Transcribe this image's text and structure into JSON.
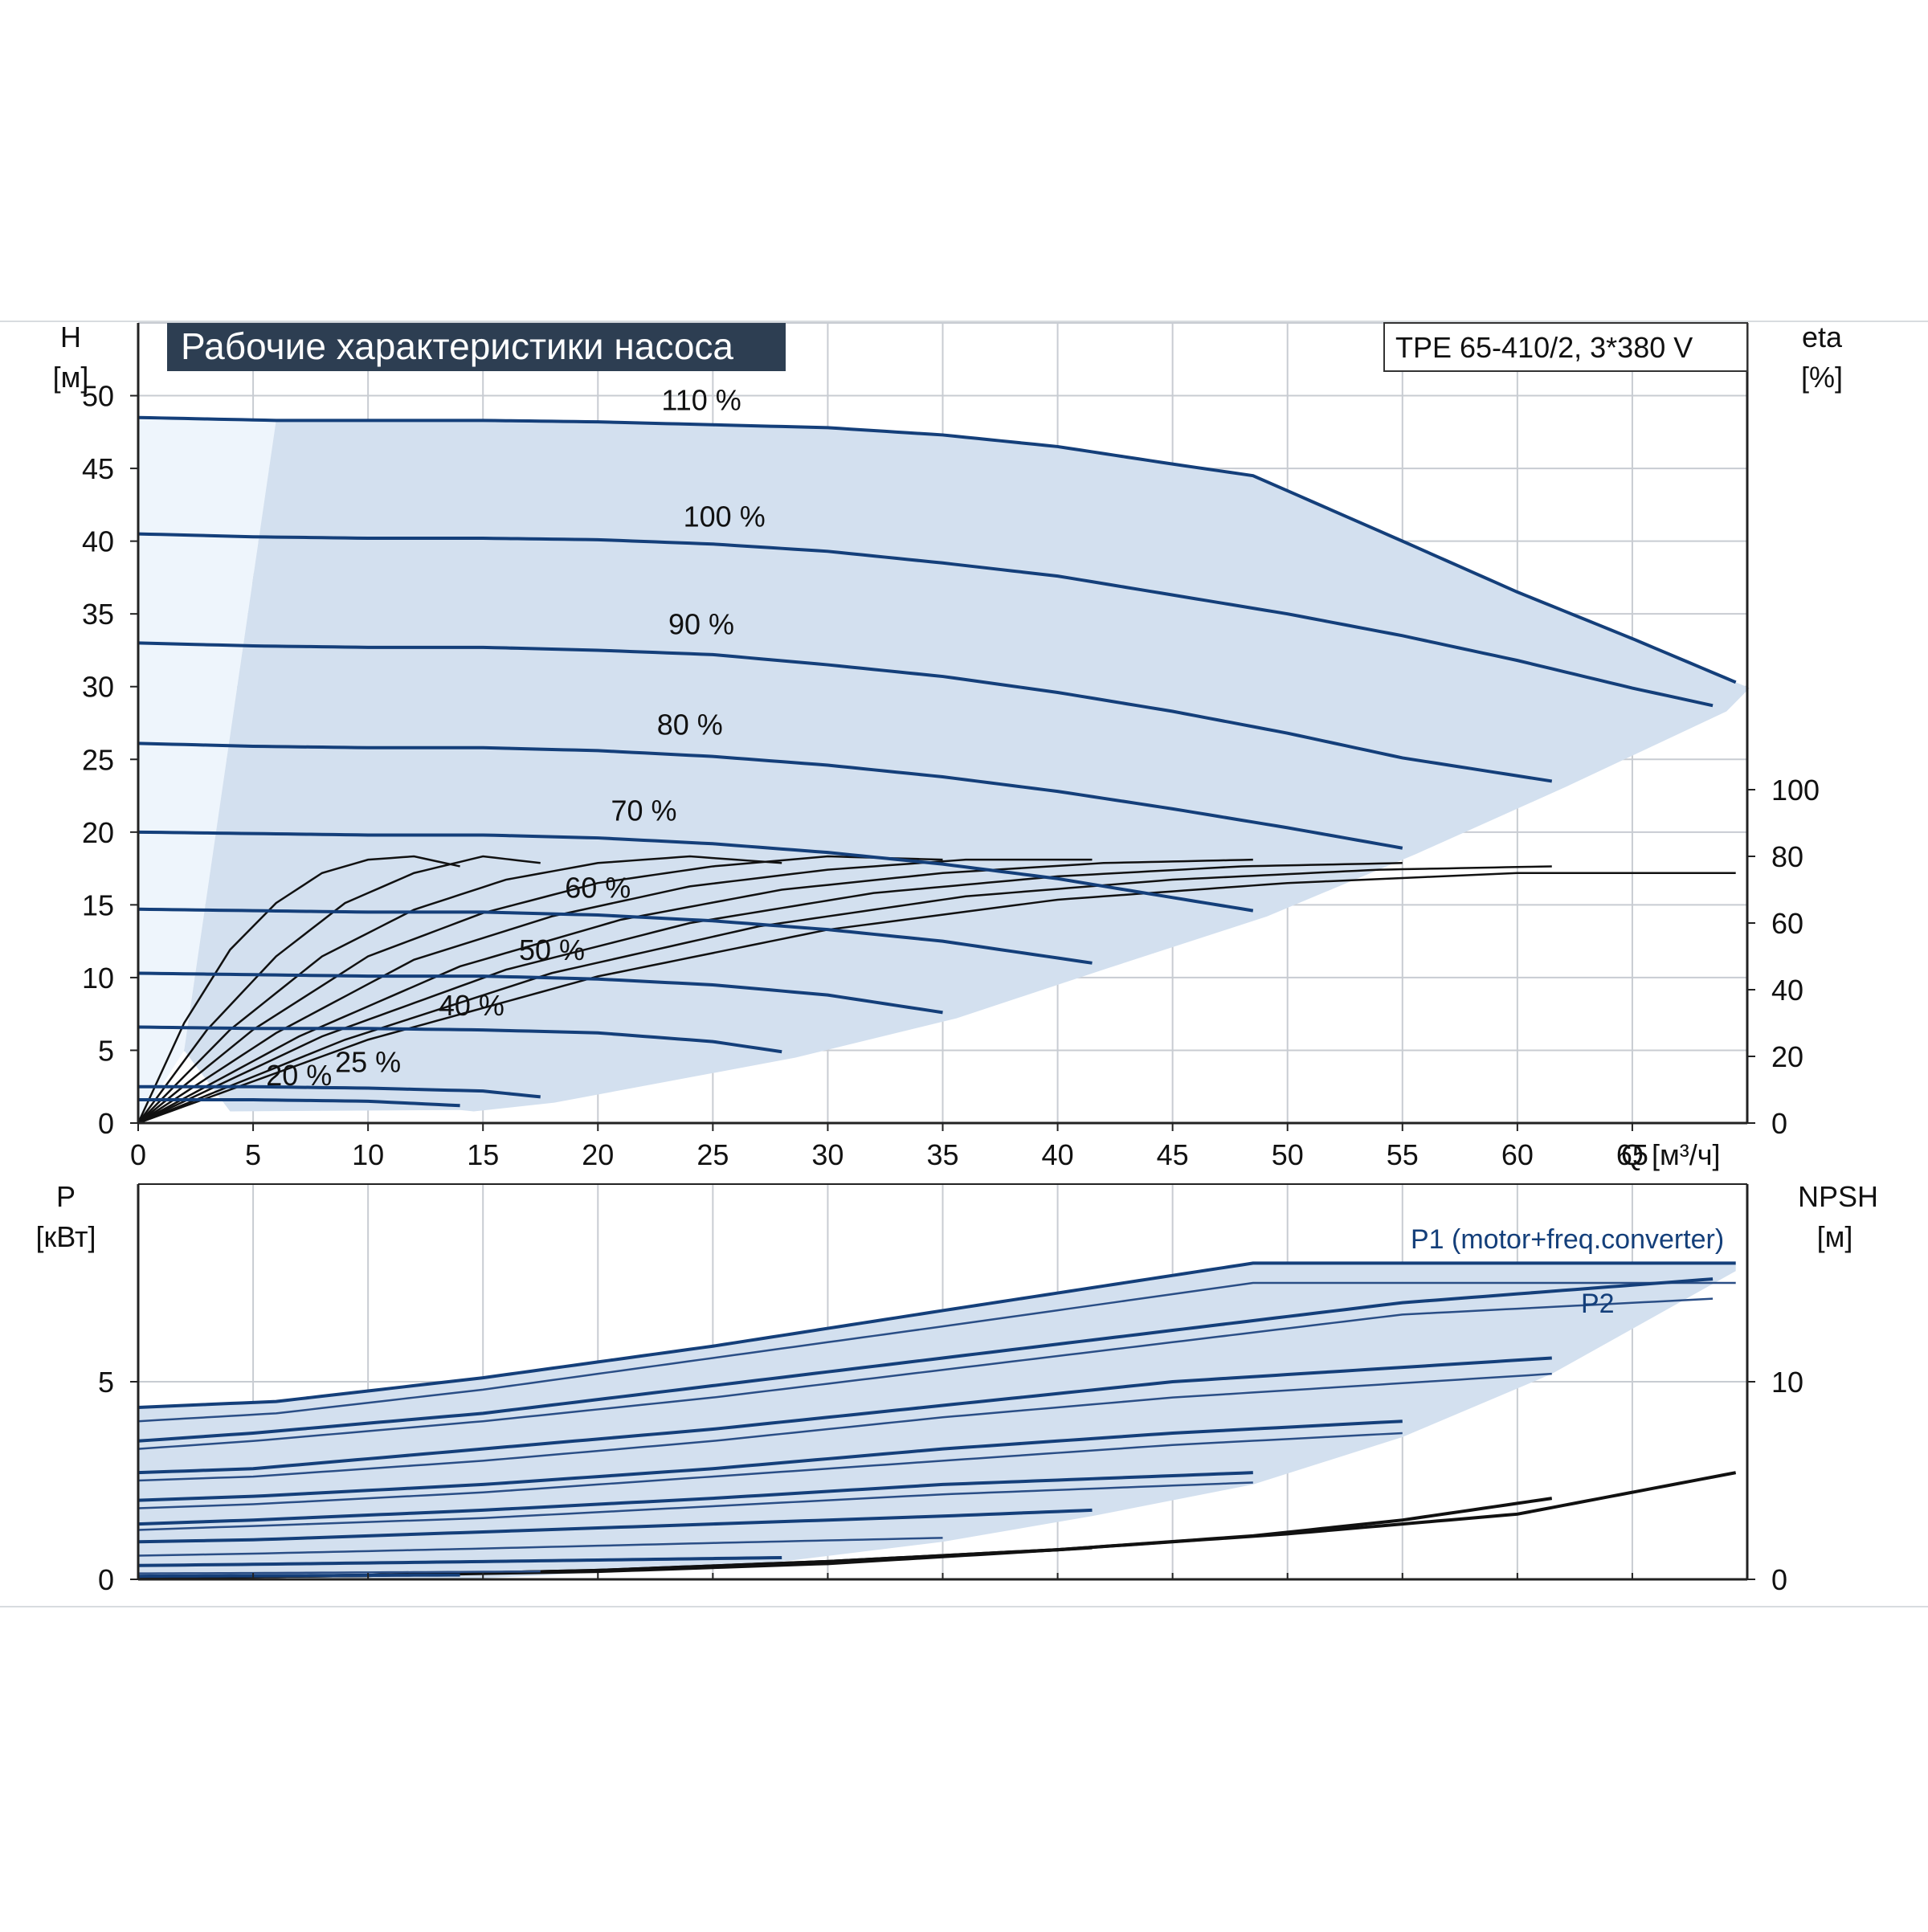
{
  "colors": {
    "curve": "#143f7a",
    "envelope": "#d3e0ef",
    "envelope_light": "#eef5fc",
    "grid": "#c8ccd2",
    "efficiency": "#111111",
    "title_bg": "#2d3e52",
    "title_text": "#ffffff"
  },
  "chart_data": [
    {
      "type": "line",
      "title": "Рабочие характеристики насоса",
      "model_label": "TPE 65-410/2, 3*380 V",
      "xlabel": "Q [м³/ч]",
      "ylabel": "H",
      "ylabel_unit": "[м]",
      "y2label": "eta",
      "y2label_unit": "[%]",
      "xlim": [
        0,
        70
      ],
      "ylim": [
        0,
        55
      ],
      "y2lim": [
        0,
        100
      ],
      "x_ticks": [
        0,
        5,
        10,
        15,
        20,
        25,
        30,
        35,
        40,
        45,
        50,
        55,
        60,
        65
      ],
      "y_ticks": [
        0,
        5,
        10,
        15,
        20,
        25,
        30,
        35,
        40,
        45,
        50
      ],
      "y2_ticks": [
        0,
        20,
        40,
        60,
        80,
        100
      ],
      "grid": true,
      "head_curves": [
        {
          "label": "110 %",
          "label_at": [
            24.5,
            49.0
          ],
          "x": [
            0,
            6,
            15,
            20,
            25,
            30,
            35,
            40,
            45,
            48.5,
            55,
            60,
            65,
            69.5
          ],
          "y": [
            48.5,
            48.3,
            48.3,
            48.2,
            48.0,
            47.8,
            47.3,
            46.5,
            45.3,
            44.5,
            40.0,
            36.5,
            33.3,
            30.3
          ]
        },
        {
          "label": "100 %",
          "label_at": [
            25.5,
            41.0
          ],
          "x": [
            0,
            5,
            10,
            15,
            20,
            25,
            30,
            35,
            40,
            45,
            50,
            55,
            60,
            65,
            68.5
          ],
          "y": [
            40.5,
            40.3,
            40.2,
            40.2,
            40.1,
            39.8,
            39.3,
            38.5,
            37.6,
            36.3,
            35.0,
            33.5,
            31.8,
            29.9,
            28.7
          ]
        },
        {
          "label": "90 %",
          "label_at": [
            24.5,
            33.6
          ],
          "x": [
            0,
            5,
            10,
            15,
            20,
            25,
            30,
            35,
            40,
            45,
            50,
            55,
            61.5
          ],
          "y": [
            33.0,
            32.8,
            32.7,
            32.7,
            32.5,
            32.2,
            31.5,
            30.7,
            29.6,
            28.3,
            26.8,
            25.1,
            23.5
          ]
        },
        {
          "label": "80 %",
          "label_at": [
            24.0,
            26.7
          ],
          "x": [
            0,
            5,
            10,
            15,
            20,
            25,
            30,
            35,
            40,
            45,
            50,
            55
          ],
          "y": [
            26.1,
            25.9,
            25.8,
            25.8,
            25.6,
            25.2,
            24.6,
            23.8,
            22.8,
            21.6,
            20.3,
            18.9
          ]
        },
        {
          "label": "70 %",
          "label_at": [
            22.0,
            20.8
          ],
          "x": [
            0,
            5,
            10,
            15,
            20,
            25,
            30,
            35,
            40,
            45,
            48.5
          ],
          "y": [
            20.0,
            19.9,
            19.8,
            19.8,
            19.6,
            19.2,
            18.6,
            17.8,
            16.8,
            15.5,
            14.6
          ]
        },
        {
          "label": "60 %",
          "label_at": [
            20.0,
            15.5
          ],
          "x": [
            0,
            5,
            10,
            15,
            20,
            25,
            30,
            35,
            41.5
          ],
          "y": [
            14.7,
            14.6,
            14.5,
            14.5,
            14.3,
            13.9,
            13.3,
            12.5,
            11.0
          ]
        },
        {
          "label": "50 %",
          "label_at": [
            18.0,
            11.2
          ],
          "x": [
            0,
            5,
            10,
            15,
            20,
            25,
            30,
            35
          ],
          "y": [
            10.3,
            10.2,
            10.1,
            10.1,
            9.9,
            9.5,
            8.8,
            7.6
          ]
        },
        {
          "label": "40 %",
          "label_at": [
            14.5,
            7.4
          ],
          "x": [
            0,
            5,
            10,
            15,
            20,
            25,
            28
          ],
          "y": [
            6.6,
            6.5,
            6.5,
            6.4,
            6.2,
            5.6,
            4.9
          ]
        },
        {
          "label": "25 %",
          "label_at": [
            10.0,
            3.5
          ],
          "x": [
            0,
            5,
            10,
            15,
            17.5
          ],
          "y": [
            2.5,
            2.5,
            2.4,
            2.2,
            1.8
          ]
        },
        {
          "label": "20 %",
          "label_at": [
            7.0,
            2.6
          ],
          "x": [
            0,
            5,
            10,
            14
          ],
          "y": [
            1.6,
            1.6,
            1.5,
            1.2
          ]
        }
      ],
      "efficiency_curves": [
        {
          "x": [
            0,
            2,
            4,
            6,
            8,
            10,
            12,
            14
          ],
          "y": [
            0,
            30,
            52,
            66,
            75,
            79,
            80,
            77
          ]
        },
        {
          "x": [
            0,
            3,
            6,
            9,
            12,
            15,
            17.5
          ],
          "y": [
            0,
            28,
            50,
            66,
            75,
            80,
            78
          ]
        },
        {
          "x": [
            0,
            4,
            8,
            12,
            16,
            20,
            24,
            28
          ],
          "y": [
            0,
            28,
            50,
            64,
            73,
            78,
            80,
            78
          ]
        },
        {
          "x": [
            0,
            5,
            10,
            15,
            20,
            25,
            30,
            35
          ],
          "y": [
            0,
            28,
            50,
            63,
            72,
            77,
            80,
            79
          ]
        },
        {
          "x": [
            0,
            6,
            12,
            18,
            24,
            30,
            36,
            41.5
          ],
          "y": [
            0,
            27,
            49,
            62,
            71,
            76,
            79,
            79
          ]
        },
        {
          "x": [
            0,
            7,
            14,
            21,
            28,
            35,
            42,
            48.5
          ],
          "y": [
            0,
            26,
            47,
            61,
            70,
            75,
            78,
            79
          ]
        },
        {
          "x": [
            0,
            8,
            16,
            24,
            32,
            40,
            48,
            55
          ],
          "y": [
            0,
            26,
            46,
            60,
            69,
            74,
            77,
            78
          ]
        },
        {
          "x": [
            0,
            9,
            18,
            27,
            36,
            45,
            54,
            61.5
          ],
          "y": [
            0,
            25,
            45,
            59,
            68,
            73,
            76,
            77
          ]
        },
        {
          "x": [
            0,
            10,
            20,
            30,
            40,
            50,
            60,
            69.5
          ],
          "y": [
            0,
            25,
            44,
            58,
            67,
            72,
            75,
            75
          ]
        }
      ]
    },
    {
      "type": "line",
      "ylabel": "P",
      "ylabel_unit": "[кВт]",
      "y2label": "NPSH",
      "y2label_unit": "[м]",
      "xlim": [
        0,
        70
      ],
      "ylim": [
        0,
        10
      ],
      "y2lim": [
        0,
        20
      ],
      "y_ticks": [
        0,
        5
      ],
      "y2_ticks": [
        0,
        10
      ],
      "grid": true,
      "p1_label": "P1 (motor+freq.converter)",
      "p2_label": "P2",
      "power_curves": [
        {
          "x": [
            0,
            6,
            15,
            25,
            35,
            48.5,
            69.5
          ],
          "y": [
            4.35,
            4.5,
            5.1,
            5.9,
            6.8,
            8.0,
            8.0
          ]
        },
        {
          "x": [
            0,
            6,
            15,
            25,
            35,
            48.5,
            69.5
          ],
          "y": [
            4.0,
            4.2,
            4.8,
            5.6,
            6.4,
            7.5,
            7.5
          ]
        },
        {
          "x": [
            0,
            5,
            15,
            25,
            35,
            45,
            55,
            68.5
          ],
          "y": [
            3.5,
            3.7,
            4.2,
            4.9,
            5.6,
            6.3,
            7.0,
            7.6
          ]
        },
        {
          "x": [
            0,
            5,
            15,
            25,
            35,
            45,
            55,
            68.5
          ],
          "y": [
            3.3,
            3.5,
            4.0,
            4.6,
            5.3,
            6.0,
            6.7,
            7.1
          ]
        },
        {
          "x": [
            0,
            5,
            15,
            25,
            35,
            45,
            61.5
          ],
          "y": [
            2.7,
            2.8,
            3.3,
            3.8,
            4.4,
            5.0,
            5.6
          ]
        },
        {
          "x": [
            0,
            5,
            15,
            25,
            35,
            45,
            61.5
          ],
          "y": [
            2.5,
            2.6,
            3.0,
            3.5,
            4.1,
            4.6,
            5.2
          ]
        },
        {
          "x": [
            0,
            5,
            15,
            25,
            35,
            45,
            55
          ],
          "y": [
            2.0,
            2.1,
            2.4,
            2.8,
            3.3,
            3.7,
            4.0
          ]
        },
        {
          "x": [
            0,
            5,
            15,
            25,
            35,
            45,
            55
          ],
          "y": [
            1.8,
            1.9,
            2.2,
            2.6,
            3.0,
            3.4,
            3.7
          ]
        },
        {
          "x": [
            0,
            5,
            15,
            25,
            35,
            48.5
          ],
          "y": [
            1.4,
            1.5,
            1.75,
            2.05,
            2.4,
            2.7
          ]
        },
        {
          "x": [
            0,
            5,
            15,
            25,
            35,
            48.5
          ],
          "y": [
            1.25,
            1.35,
            1.55,
            1.85,
            2.15,
            2.45
          ]
        },
        {
          "x": [
            0,
            5,
            15,
            25,
            35,
            41.5
          ],
          "y": [
            0.95,
            1.0,
            1.2,
            1.4,
            1.6,
            1.75
          ]
        },
        {
          "x": [
            0,
            5,
            15,
            25,
            35
          ],
          "y": [
            0.6,
            0.65,
            0.78,
            0.92,
            1.05
          ]
        },
        {
          "x": [
            0,
            5,
            15,
            28
          ],
          "y": [
            0.35,
            0.38,
            0.45,
            0.55
          ]
        },
        {
          "x": [
            0,
            5,
            17.5
          ],
          "y": [
            0.15,
            0.16,
            0.2
          ]
        },
        {
          "x": [
            0,
            5,
            14
          ],
          "y": [
            0.08,
            0.09,
            0.11
          ]
        }
      ],
      "npsh_curves": [
        {
          "x": [
            0,
            10,
            20,
            30,
            40,
            50,
            60,
            69.5
          ],
          "y": [
            0.1,
            0.2,
            0.45,
            0.9,
            1.5,
            2.3,
            3.3,
            5.4
          ]
        },
        {
          "x": [
            0,
            10,
            20,
            30,
            40,
            48.5,
            55,
            61.5
          ],
          "y": [
            0.1,
            0.2,
            0.45,
            0.9,
            1.5,
            2.2,
            3.0,
            4.1
          ]
        },
        {
          "x": [
            0,
            10,
            20,
            30,
            41.5
          ],
          "y": [
            0.1,
            0.2,
            0.4,
            0.8,
            1.6
          ]
        }
      ]
    }
  ]
}
